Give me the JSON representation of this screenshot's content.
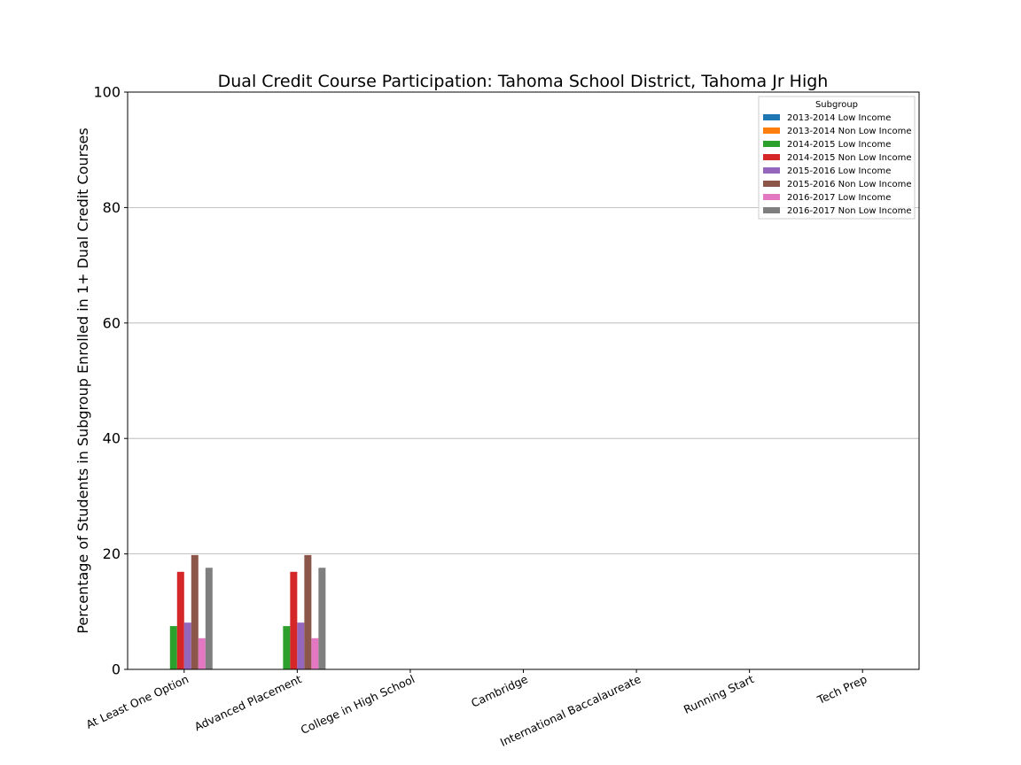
{
  "chart_data": {
    "type": "bar",
    "title": "Dual Credit Course Participation: Tahoma School District, Tahoma Jr High",
    "xlabel": "",
    "ylabel": "Percentage of Students in Subgroup Enrolled in 1+ Dual Credit Courses",
    "ylim": [
      0,
      100
    ],
    "yticks": [
      0,
      20,
      40,
      60,
      80,
      100
    ],
    "grid": "y",
    "legend_title": "Subgroup",
    "legend_position": "top-right",
    "categories": [
      "At Least One Option",
      "Advanced Placement",
      "College in High School",
      "Cambridge",
      "International Baccalaureate",
      "Running Start",
      "Tech Prep"
    ],
    "series": [
      {
        "name": "2013-2014 Low Income",
        "color": "#1f77b4",
        "values": [
          0,
          0,
          0,
          0,
          0,
          0,
          0
        ]
      },
      {
        "name": "2013-2014 Non Low Income",
        "color": "#ff7f0e",
        "values": [
          0,
          0,
          0,
          0,
          0,
          0,
          0
        ]
      },
      {
        "name": "2014-2015 Low Income",
        "color": "#2ca02c",
        "values": [
          7.5,
          7.5,
          0,
          0,
          0,
          0,
          0
        ]
      },
      {
        "name": "2014-2015 Non Low Income",
        "color": "#d62728",
        "values": [
          16.9,
          16.9,
          0,
          0,
          0,
          0,
          0
        ]
      },
      {
        "name": "2015-2016 Low Income",
        "color": "#9467bd",
        "values": [
          8.1,
          8.1,
          0,
          0,
          0,
          0,
          0
        ]
      },
      {
        "name": "2015-2016 Non Low Income",
        "color": "#8c564b",
        "values": [
          19.8,
          19.8,
          0,
          0,
          0,
          0,
          0
        ]
      },
      {
        "name": "2016-2017 Low Income",
        "color": "#e377c2",
        "values": [
          5.4,
          5.4,
          0,
          0,
          0,
          0,
          0
        ]
      },
      {
        "name": "2016-2017 Non Low Income",
        "color": "#7f7f7f",
        "values": [
          17.6,
          17.6,
          0,
          0,
          0,
          0,
          0
        ]
      }
    ]
  }
}
